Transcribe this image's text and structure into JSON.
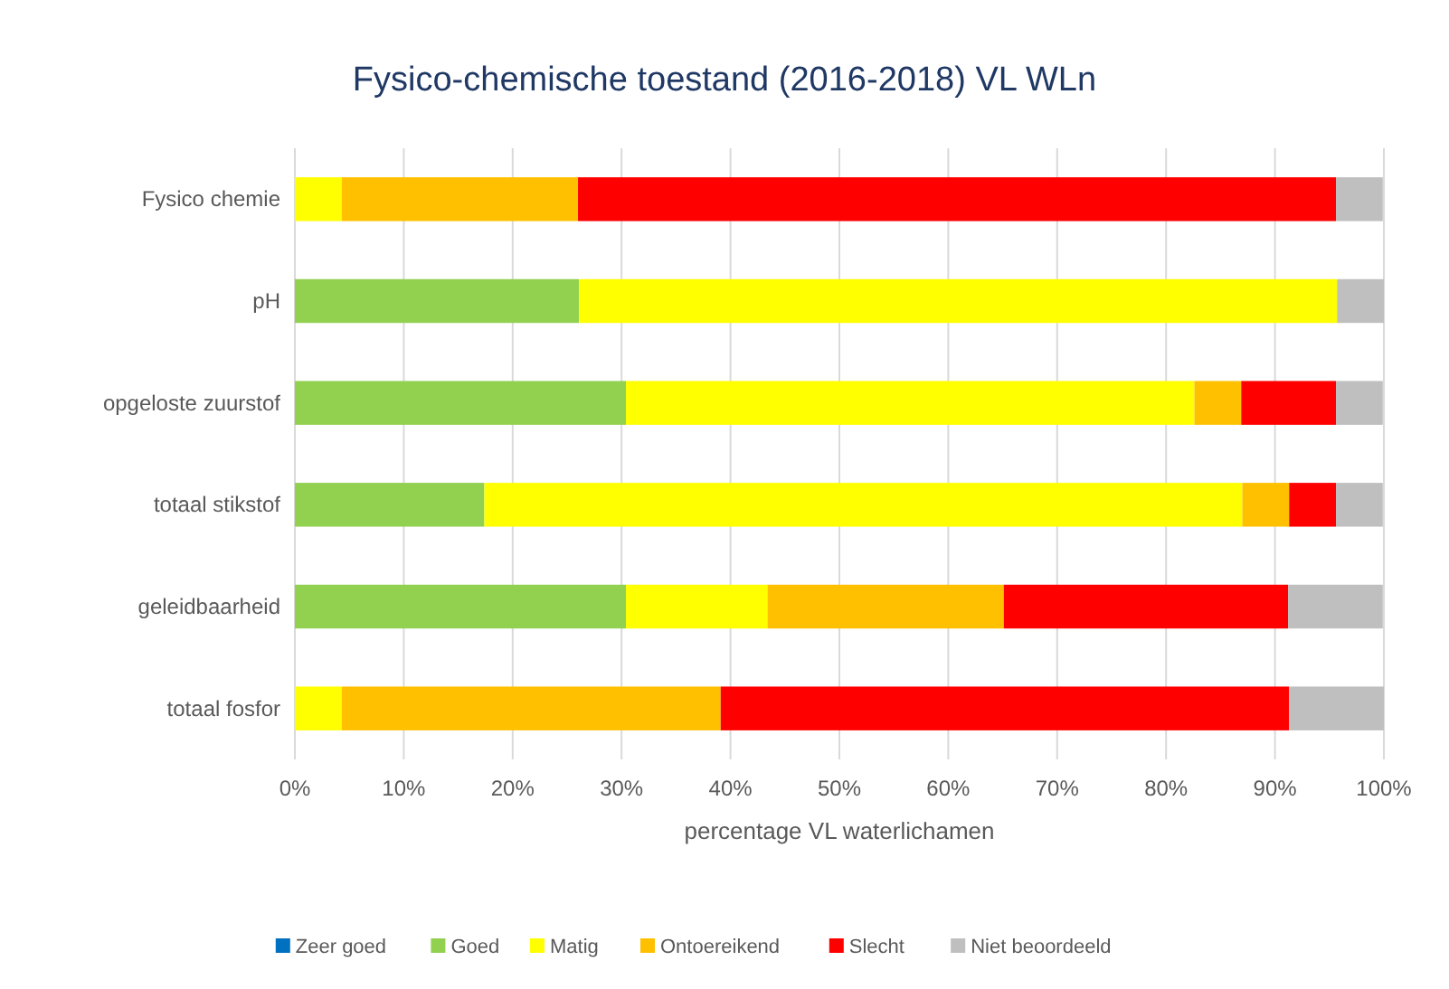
{
  "chart_data": {
    "type": "bar",
    "orientation": "horizontal",
    "stacked": true,
    "title": "Fysico-chemische toestand (2016-2018)   VL  WLn",
    "xlabel": "percentage VL waterlichamen",
    "categories": [
      "Fysico chemie",
      "pH",
      "opgeloste zuurstof",
      "totaal stikstof",
      "geleidbaarheid",
      "totaal fosfor"
    ],
    "series": [
      {
        "name": "Zeer goed",
        "color": "#0070c0",
        "values": [
          0,
          0,
          0,
          0,
          0,
          0
        ]
      },
      {
        "name": "Goed",
        "color": "#92d050",
        "values": [
          0,
          26.1,
          30.4,
          17.4,
          30.4,
          0
        ]
      },
      {
        "name": "Matig",
        "color": "#ffff00",
        "values": [
          4.3,
          69.6,
          52.2,
          69.6,
          13.0,
          4.3
        ]
      },
      {
        "name": "Ontoereikend",
        "color": "#ffc000",
        "values": [
          21.7,
          0,
          4.3,
          4.3,
          21.7,
          34.8
        ]
      },
      {
        "name": "Slecht",
        "color": "#ff0000",
        "values": [
          69.6,
          0,
          8.7,
          4.3,
          26.1,
          52.2
        ]
      },
      {
        "name": "Niet beoordeeld",
        "color": "#bfbfbf",
        "values": [
          4.3,
          4.3,
          4.3,
          4.3,
          8.7,
          8.7
        ]
      }
    ],
    "xlim": [
      0,
      100
    ],
    "xticks": [
      {
        "value": 0,
        "label": "0%"
      },
      {
        "value": 10,
        "label": "10%"
      },
      {
        "value": 20,
        "label": "20%"
      },
      {
        "value": 30,
        "label": "30%"
      },
      {
        "value": 40,
        "label": "40%"
      },
      {
        "value": 50,
        "label": "50%"
      },
      {
        "value": 60,
        "label": "60%"
      },
      {
        "value": 70,
        "label": "70%"
      },
      {
        "value": 80,
        "label": "80%"
      },
      {
        "value": 90,
        "label": "90%"
      },
      {
        "value": 100,
        "label": "100%"
      }
    ],
    "grid": "x",
    "legend": "bottom"
  }
}
